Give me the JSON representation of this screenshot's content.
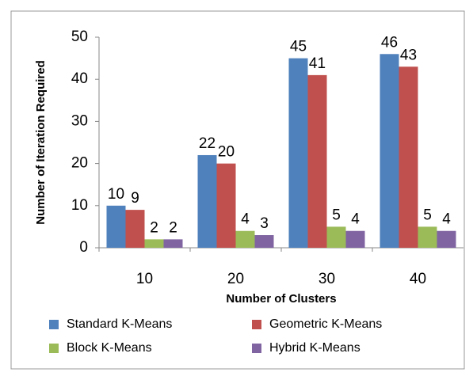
{
  "chart_data": {
    "type": "bar",
    "y_label": "Number of Iteration Required",
    "x_label": "Number of Clusters",
    "categories": [
      "10",
      "20",
      "30",
      "40"
    ],
    "series": [
      {
        "name": "Standard K-Means",
        "color": "#4f81bd",
        "values": [
          10,
          22,
          45,
          46
        ]
      },
      {
        "name": "Geometric K-Means",
        "color": "#c0504d",
        "values": [
          9,
          20,
          41,
          43
        ]
      },
      {
        "name": "Block K-Means",
        "color": "#9bbb59",
        "values": [
          2,
          4,
          5,
          5
        ]
      },
      {
        "name": "Hybrid K-Means",
        "color": "#8064a2",
        "values": [
          2,
          3,
          4,
          4
        ]
      }
    ],
    "ylim": [
      0,
      50
    ],
    "yticks": [
      0,
      10,
      20,
      30,
      40,
      50
    ],
    "grid": false,
    "legend": "bottom"
  }
}
